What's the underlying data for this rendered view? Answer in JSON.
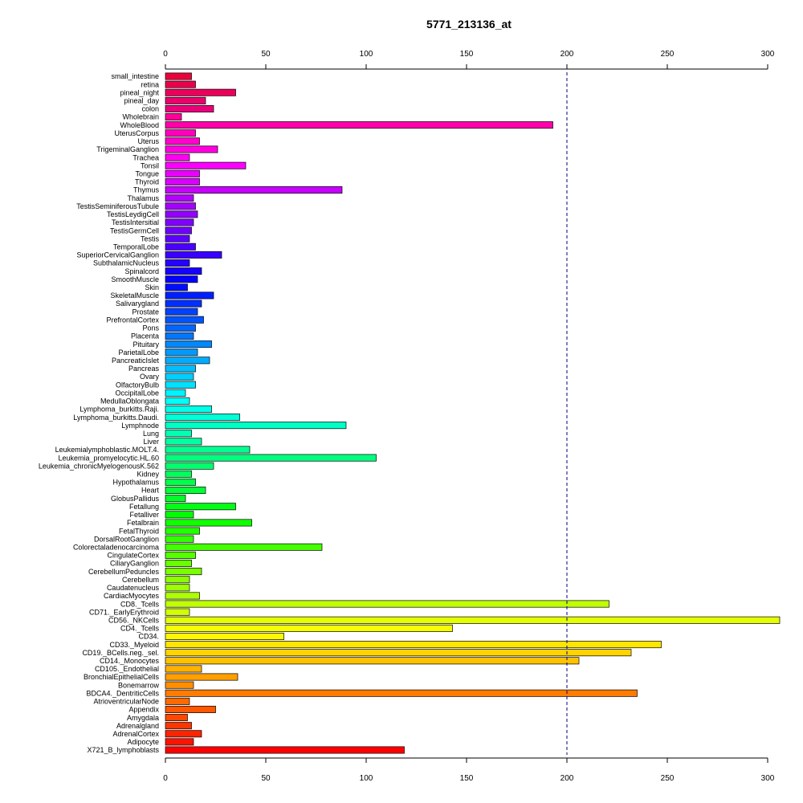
{
  "chart_data": {
    "type": "bar",
    "orientation": "horizontal",
    "title": "5771_213136_at",
    "xlabel": "",
    "ylabel": "",
    "xlim": [
      0,
      300
    ],
    "xticks": [
      "0",
      "50",
      "100",
      "150",
      "200",
      "250",
      "300"
    ],
    "reference_line": 200,
    "grid": false,
    "legend": "none",
    "categories": [
      "small_intestine",
      "retina",
      "pineal_night",
      "pineal_day",
      "colon",
      "Wholebrain",
      "WholeBlood",
      "UterusCorpus",
      "Uterus",
      "TrigeminalGanglion",
      "Trachea",
      "Tonsil",
      "Tongue",
      "Thyroid",
      "Thymus",
      "Thalamus",
      "TestisSeminiferousTubule",
      "TestisLeydigCell",
      "TestisIntersitial",
      "TestisGermCell",
      "Testis",
      "TemporalLobe",
      "SuperiorCervicalGanglion",
      "SubthalamicNucleus",
      "Spinalcord",
      "SmoothMuscle",
      "Skin",
      "SkeletalMuscle",
      "Salivarygland",
      "Prostate",
      "PrefrontalCortex",
      "Pons",
      "Placenta",
      "Pituitary",
      "ParietalLobe",
      "PancreaticIslet",
      "Pancreas",
      "Ovary",
      "OlfactoryBulb",
      "OccipitalLobe",
      "MedullaOblongata",
      "Lymphoma_burkitts.Raji.",
      "Lymphoma_burkitts.Daudi.",
      "Lymphnode",
      "Lung",
      "Liver",
      "Leukemialymphoblastic.MOLT.4.",
      "Leukemia_promyelocytic.HL.60",
      "Leukemia_chronicMyelogenousK.562",
      "Kidney",
      "Hypothalamus",
      "Heart",
      "GlobusPallidus",
      "Fetallung",
      "Fetalliver",
      "Fetalbrain",
      "FetalThyroid",
      "DorsalRootGanglion",
      "Colorectaladenocarcinoma",
      "CingulateCortex",
      "CiliaryGanglion",
      "CerebellumPeduncles",
      "Cerebellum",
      "Caudatenucleus",
      "CardiacMyocytes",
      "CD8._Tcells",
      "CD71._EarlyErythroid",
      "CD56._NKCells",
      "CD4._Tcells",
      "CD34.",
      "CD33._Myeloid",
      "CD19._BCells.neg._sel.",
      "CD14._Monocytes",
      "CD105._Endothelial",
      "BronchialEpithelialCells",
      "Bonemarrow",
      "BDCA4._DentriticCells",
      "AtrioventricularNode",
      "Appendix",
      "Amygdala",
      "Adrenalgland",
      "AdrenalCortex",
      "Adipocyte",
      "X721_B_lymphoblasts"
    ],
    "values": [
      13,
      15,
      35,
      20,
      24,
      8,
      193,
      15,
      17,
      26,
      12,
      40,
      17,
      17,
      88,
      14,
      15,
      16,
      14,
      13,
      12,
      15,
      28,
      12,
      18,
      16,
      11,
      24,
      18,
      16,
      19,
      15,
      14,
      23,
      16,
      22,
      15,
      14,
      15,
      10,
      12,
      23,
      37,
      90,
      13,
      18,
      42,
      105,
      24,
      13,
      15,
      20,
      10,
      35,
      14,
      43,
      17,
      14,
      78,
      15,
      13,
      18,
      12,
      12,
      17,
      221,
      12,
      306,
      143,
      59,
      247,
      232,
      206,
      18,
      36,
      14,
      235,
      12,
      25,
      11,
      13,
      18,
      14,
      119
    ]
  }
}
